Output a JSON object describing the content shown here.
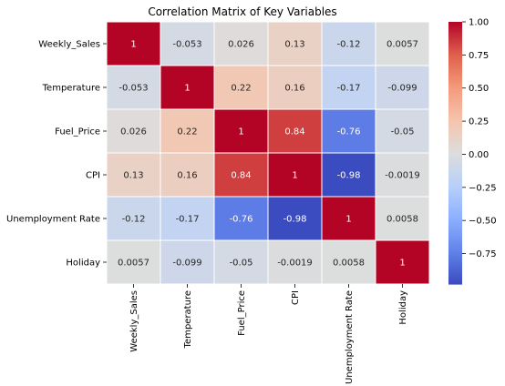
{
  "chart_data": {
    "type": "heatmap",
    "title": "Correlation Matrix of Key Variables",
    "row_labels": [
      "Weekly_Sales",
      "Temperature",
      "Fuel_Price",
      "CPI",
      "Unemployment Rate",
      "Holiday"
    ],
    "col_labels": [
      "Weekly_Sales",
      "Temperature",
      "Fuel_Price",
      "CPI",
      "Unemployment Rate",
      "Holiday"
    ],
    "values": [
      [
        1,
        -0.053,
        0.026,
        0.13,
        -0.12,
        0.0057
      ],
      [
        -0.053,
        1,
        0.22,
        0.16,
        -0.17,
        -0.099
      ],
      [
        0.026,
        0.22,
        1,
        0.84,
        -0.76,
        -0.05
      ],
      [
        0.13,
        0.16,
        0.84,
        1,
        -0.98,
        -0.0019
      ],
      [
        -0.12,
        -0.17,
        -0.76,
        -0.98,
        1,
        0.0058
      ],
      [
        0.0057,
        -0.099,
        -0.05,
        -0.0019,
        0.0058,
        1
      ]
    ],
    "cell_labels": [
      [
        "1",
        "-0.053",
        "0.026",
        "0.13",
        "-0.12",
        "0.0057"
      ],
      [
        "-0.053",
        "1",
        "0.22",
        "0.16",
        "-0.17",
        "-0.099"
      ],
      [
        "0.026",
        "0.22",
        "1",
        "0.84",
        "-0.76",
        "-0.05"
      ],
      [
        "0.13",
        "0.16",
        "0.84",
        "1",
        "-0.98",
        "-0.0019"
      ],
      [
        "-0.12",
        "-0.17",
        "-0.76",
        "-0.98",
        "1",
        "0.0058"
      ],
      [
        "0.0057",
        "-0.099",
        "-0.05",
        "-0.0019",
        "0.0058",
        "1"
      ]
    ],
    "colorbar": {
      "colormap": "coolwarm",
      "vmin": -0.98,
      "vmax": 1,
      "ticks": [
        1.0,
        0.75,
        0.5,
        0.25,
        0.0,
        -0.25,
        -0.5,
        -0.75
      ],
      "tick_labels": [
        "1.00",
        "0.75",
        "0.50",
        "0.25",
        "0.00",
        "−0.25",
        "−0.50",
        "−0.75"
      ]
    }
  }
}
